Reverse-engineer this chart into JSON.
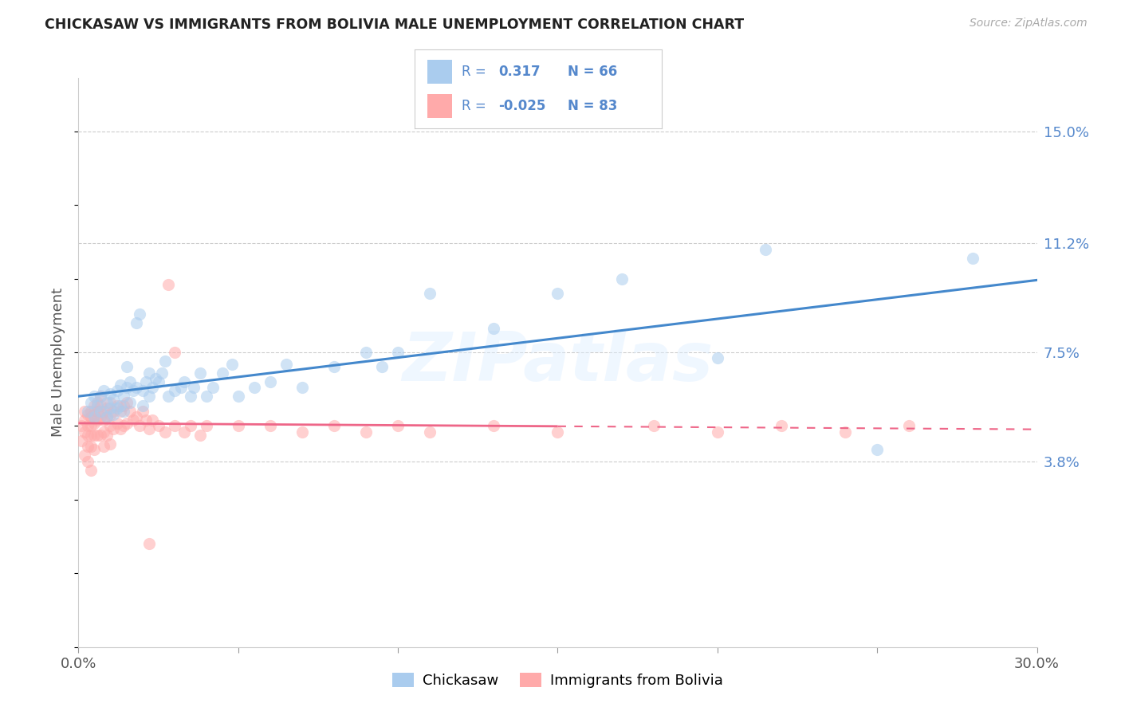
{
  "title": "CHICKASAW VS IMMIGRANTS FROM BOLIVIA MALE UNEMPLOYMENT CORRELATION CHART",
  "source": "Source: ZipAtlas.com",
  "ylabel": "Male Unemployment",
  "yticks": [
    0.038,
    0.075,
    0.112,
    0.15
  ],
  "ytick_labels": [
    "3.8%",
    "7.5%",
    "11.2%",
    "15.0%"
  ],
  "xmin": 0.0,
  "xmax": 0.3,
  "ymin": -0.025,
  "ymax": 0.168,
  "color_blue": "#AACCEE",
  "color_pink": "#FFAAAA",
  "color_line_blue": "#4488CC",
  "color_line_pink": "#EE6688",
  "color_label_blue": "#5588CC",
  "watermark_text": "ZIPatlas",
  "bottom_label1": "Chickasaw",
  "bottom_label2": "Immigrants from Bolivia",
  "chickasaw_x": [
    0.003,
    0.004,
    0.005,
    0.005,
    0.006,
    0.007,
    0.007,
    0.008,
    0.009,
    0.009,
    0.01,
    0.01,
    0.011,
    0.011,
    0.012,
    0.012,
    0.013,
    0.013,
    0.014,
    0.014,
    0.015,
    0.015,
    0.016,
    0.016,
    0.017,
    0.018,
    0.018,
    0.019,
    0.02,
    0.02,
    0.021,
    0.022,
    0.022,
    0.023,
    0.024,
    0.025,
    0.026,
    0.027,
    0.028,
    0.03,
    0.032,
    0.033,
    0.035,
    0.036,
    0.038,
    0.04,
    0.042,
    0.045,
    0.048,
    0.05,
    0.055,
    0.06,
    0.065,
    0.07,
    0.08,
    0.09,
    0.095,
    0.1,
    0.11,
    0.13,
    0.15,
    0.17,
    0.2,
    0.215,
    0.25,
    0.28
  ],
  "chickasaw_y": [
    0.055,
    0.058,
    0.06,
    0.053,
    0.057,
    0.06,
    0.055,
    0.062,
    0.053,
    0.058,
    0.056,
    0.061,
    0.054,
    0.059,
    0.056,
    0.062,
    0.057,
    0.064,
    0.055,
    0.06,
    0.063,
    0.07,
    0.058,
    0.065,
    0.062,
    0.063,
    0.085,
    0.088,
    0.057,
    0.062,
    0.065,
    0.06,
    0.068,
    0.063,
    0.066,
    0.065,
    0.068,
    0.072,
    0.06,
    0.062,
    0.063,
    0.065,
    0.06,
    0.063,
    0.068,
    0.06,
    0.063,
    0.068,
    0.071,
    0.06,
    0.063,
    0.065,
    0.071,
    0.063,
    0.07,
    0.075,
    0.07,
    0.075,
    0.095,
    0.083,
    0.095,
    0.1,
    0.073,
    0.11,
    0.042,
    0.107
  ],
  "bolivia_x": [
    0.001,
    0.001,
    0.002,
    0.002,
    0.002,
    0.002,
    0.003,
    0.003,
    0.003,
    0.003,
    0.003,
    0.004,
    0.004,
    0.004,
    0.004,
    0.004,
    0.004,
    0.005,
    0.005,
    0.005,
    0.005,
    0.005,
    0.006,
    0.006,
    0.006,
    0.006,
    0.007,
    0.007,
    0.007,
    0.007,
    0.008,
    0.008,
    0.008,
    0.008,
    0.009,
    0.009,
    0.009,
    0.01,
    0.01,
    0.01,
    0.01,
    0.011,
    0.011,
    0.012,
    0.012,
    0.013,
    0.013,
    0.014,
    0.014,
    0.015,
    0.015,
    0.016,
    0.017,
    0.018,
    0.019,
    0.02,
    0.021,
    0.022,
    0.023,
    0.025,
    0.027,
    0.03,
    0.033,
    0.035,
    0.038,
    0.04,
    0.05,
    0.06,
    0.07,
    0.08,
    0.09,
    0.1,
    0.11,
    0.13,
    0.15,
    0.18,
    0.2,
    0.22,
    0.24,
    0.26,
    0.03,
    0.028,
    0.022
  ],
  "bolivia_y": [
    0.05,
    0.045,
    0.055,
    0.052,
    0.048,
    0.04,
    0.054,
    0.05,
    0.047,
    0.043,
    0.038,
    0.055,
    0.053,
    0.05,
    0.047,
    0.043,
    0.035,
    0.057,
    0.054,
    0.051,
    0.047,
    0.042,
    0.058,
    0.055,
    0.052,
    0.047,
    0.06,
    0.057,
    0.053,
    0.047,
    0.055,
    0.052,
    0.048,
    0.043,
    0.056,
    0.053,
    0.047,
    0.058,
    0.054,
    0.05,
    0.044,
    0.055,
    0.049,
    0.057,
    0.051,
    0.055,
    0.049,
    0.057,
    0.05,
    0.058,
    0.051,
    0.055,
    0.052,
    0.053,
    0.05,
    0.055,
    0.052,
    0.049,
    0.052,
    0.05,
    0.048,
    0.05,
    0.048,
    0.05,
    0.047,
    0.05,
    0.05,
    0.05,
    0.048,
    0.05,
    0.048,
    0.05,
    0.048,
    0.05,
    0.048,
    0.05,
    0.048,
    0.05,
    0.048,
    0.05,
    0.075,
    0.098,
    0.01
  ]
}
